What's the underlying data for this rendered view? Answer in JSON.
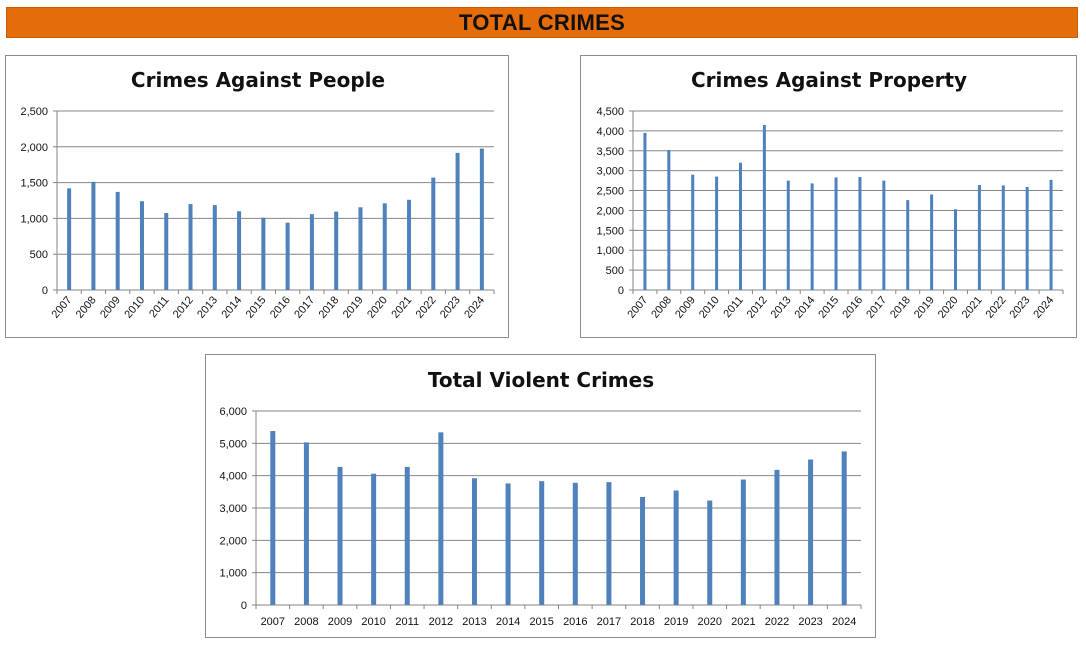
{
  "page_title": "TOTAL CRIMES",
  "colors": {
    "banner": "#e46c0a",
    "bar": "#4f81bd"
  },
  "chart_data": [
    {
      "type": "bar",
      "title": "Crimes Against People",
      "xlabel": "",
      "ylabel": "",
      "categories": [
        "2007",
        "2008",
        "2009",
        "2010",
        "2011",
        "2012",
        "2013",
        "2014",
        "2015",
        "2016",
        "2017",
        "2018",
        "2019",
        "2020",
        "2021",
        "2022",
        "2023",
        "2024"
      ],
      "values": [
        1420,
        1510,
        1370,
        1240,
        1075,
        1200,
        1185,
        1100,
        1010,
        940,
        1060,
        1095,
        1155,
        1210,
        1260,
        1570,
        1915,
        1975
      ],
      "ylim": [
        0,
        2500
      ],
      "yticks": [
        0,
        500,
        1000,
        1500,
        2000,
        2500
      ],
      "ytick_labels": [
        "0",
        "500",
        "1,000",
        "1,500",
        "2,000",
        "2,500"
      ],
      "xtick_rotation": "rotated",
      "grid": true,
      "legend": "none"
    },
    {
      "type": "bar",
      "title": "Crimes Against Property",
      "xlabel": "",
      "ylabel": "",
      "categories": [
        "2007",
        "2008",
        "2009",
        "2010",
        "2011",
        "2012",
        "2013",
        "2014",
        "2015",
        "2016",
        "2017",
        "2018",
        "2019",
        "2020",
        "2021",
        "2022",
        "2023",
        "2024"
      ],
      "values": [
        3950,
        3520,
        2900,
        2850,
        3200,
        4150,
        2750,
        2680,
        2830,
        2840,
        2750,
        2260,
        2400,
        2030,
        2640,
        2630,
        2590,
        2770
      ],
      "ylim": [
        0,
        4500
      ],
      "yticks": [
        0,
        500,
        1000,
        1500,
        2000,
        2500,
        3000,
        3500,
        4000,
        4500
      ],
      "ytick_labels": [
        "0",
        "500",
        "1,000",
        "1,500",
        "2,000",
        "2,500",
        "3,000",
        "3,500",
        "4,000",
        "4,500"
      ],
      "xtick_rotation": "rotated",
      "grid": true,
      "legend": "none"
    },
    {
      "type": "bar",
      "title": "Total Violent Crimes",
      "xlabel": "",
      "ylabel": "",
      "categories": [
        "2007",
        "2008",
        "2009",
        "2010",
        "2011",
        "2012",
        "2013",
        "2014",
        "2015",
        "2016",
        "2017",
        "2018",
        "2019",
        "2020",
        "2021",
        "2022",
        "2023",
        "2024"
      ],
      "values": [
        5380,
        5030,
        4270,
        4060,
        4270,
        5340,
        3920,
        3760,
        3830,
        3780,
        3800,
        3340,
        3540,
        3230,
        3880,
        4180,
        4500,
        4750
      ],
      "ylim": [
        0,
        6000
      ],
      "yticks": [
        0,
        1000,
        2000,
        3000,
        4000,
        5000,
        6000
      ],
      "ytick_labels": [
        "0",
        "1,000",
        "2,000",
        "3,000",
        "4,000",
        "5,000",
        "6,000"
      ],
      "xtick_rotation": "horizontal",
      "grid": true,
      "legend": "none"
    }
  ]
}
